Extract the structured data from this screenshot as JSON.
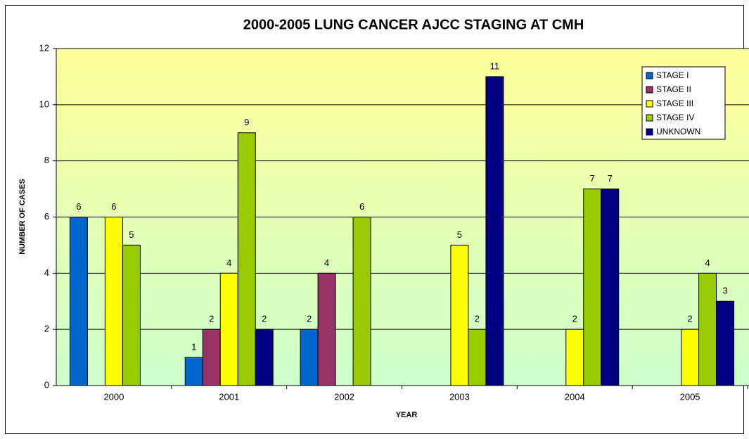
{
  "chart_data": {
    "type": "bar",
    "title": "2000-2005 LUNG CANCER AJCC STAGING AT CMH",
    "x_label": "YEAR",
    "y_label": "NUMBER OF CASES",
    "categories": [
      "2000",
      "2001",
      "2002",
      "2003",
      "2004",
      "2005"
    ],
    "series": [
      {
        "name": "STAGE I",
        "color": "#0066cc",
        "values": [
          6,
          1,
          2,
          null,
          null,
          null
        ]
      },
      {
        "name": "STAGE II",
        "color": "#993366",
        "values": [
          null,
          2,
          4,
          null,
          null,
          null
        ]
      },
      {
        "name": "STAGE III",
        "color": "#ffff00",
        "values": [
          6,
          4,
          null,
          5,
          2,
          2
        ]
      },
      {
        "name": "STAGE IV",
        "color": "#99cc00",
        "values": [
          5,
          9,
          6,
          2,
          7,
          4
        ]
      },
      {
        "name": "UNKNOWN",
        "color": "#000080",
        "values": [
          null,
          2,
          null,
          11,
          7,
          3
        ]
      }
    ],
    "ylim": [
      0,
      12
    ],
    "yticks": [
      0,
      2,
      4,
      6,
      8,
      10,
      12
    ],
    "grid": true,
    "legend": "upper right"
  }
}
